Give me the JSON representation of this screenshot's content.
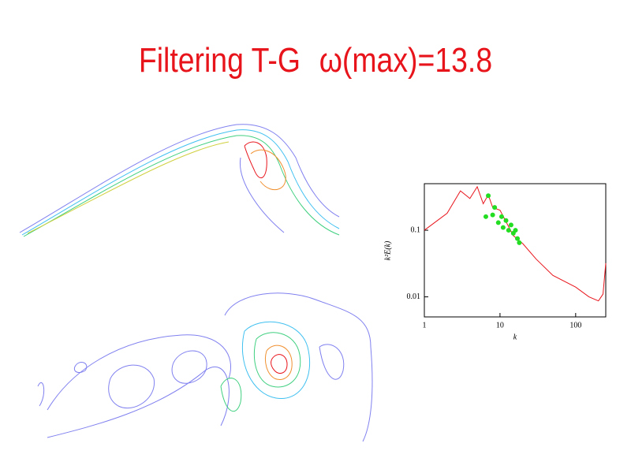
{
  "header": {
    "title": "Filtering T-G",
    "subtitle": "ω(max)=13.8"
  },
  "chart_data": {
    "type": "line",
    "x_label": "k",
    "y_label": "k²E(k)",
    "log_x": true,
    "log_y": true,
    "xlim": [
      1,
      250
    ],
    "ylim": [
      0.005,
      0.5
    ],
    "xticks": [
      1,
      10,
      100
    ],
    "yticks": [
      0.01,
      0.1
    ],
    "series": [
      {
        "color": "#e8141b",
        "mode": "line",
        "x": [
          1,
          2,
          3,
          4,
          5,
          6,
          7,
          8,
          10,
          15,
          20,
          30,
          50,
          100,
          150,
          200,
          230,
          250
        ],
        "values": [
          0.1,
          0.18,
          0.39,
          0.3,
          0.45,
          0.25,
          0.34,
          0.22,
          0.2,
          0.083,
          0.063,
          0.037,
          0.021,
          0.014,
          0.01,
          0.0087,
          0.011,
          0.032
        ]
      },
      {
        "color": "#22dd22",
        "mode": "points",
        "x": [
          6.5,
          7,
          8,
          8.5,
          9.5,
          10.5,
          11,
          12,
          13,
          14,
          15,
          16,
          17,
          18
        ],
        "values": [
          0.16,
          0.33,
          0.17,
          0.22,
          0.13,
          0.16,
          0.11,
          0.14,
          0.1,
          0.12,
          0.09,
          0.1,
          0.075,
          0.065
        ]
      }
    ]
  }
}
